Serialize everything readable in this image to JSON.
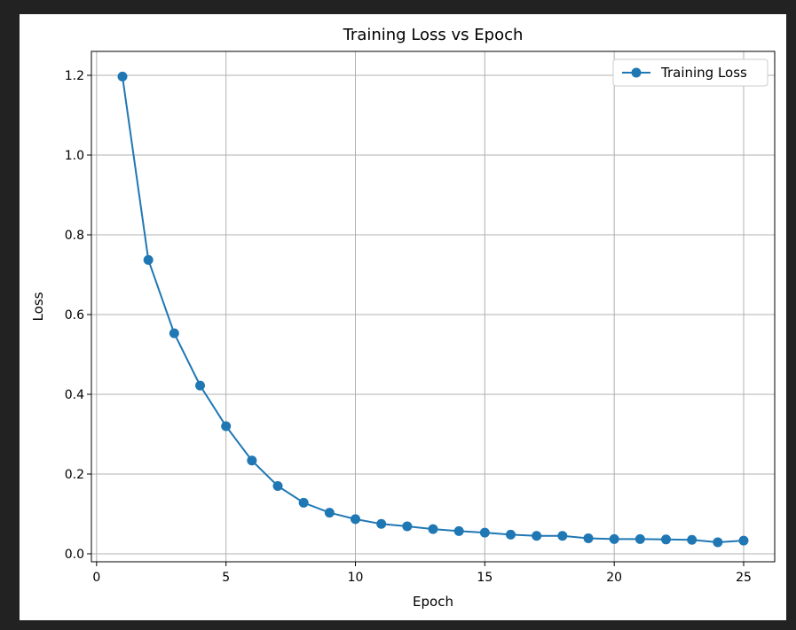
{
  "chart_data": {
    "type": "line",
    "title": "Training Loss vs Epoch",
    "xlabel": "Epoch",
    "ylabel": "Loss",
    "xlim": [
      -0.2,
      26.2
    ],
    "ylim": [
      -0.02,
      1.26
    ],
    "xticks": [
      0,
      5,
      10,
      15,
      20,
      25
    ],
    "yticks": [
      0.0,
      0.2,
      0.4,
      0.6,
      0.8,
      1.0,
      1.2
    ],
    "xtick_labels": [
      "0",
      "5",
      "10",
      "15",
      "20",
      "25"
    ],
    "ytick_labels": [
      "0.0",
      "0.2",
      "0.4",
      "0.6",
      "0.8",
      "1.0",
      "1.2"
    ],
    "grid": true,
    "legend_position": "top-right",
    "series": [
      {
        "name": "Training Loss",
        "color": "#1f77b4",
        "marker": "circle",
        "x": [
          1,
          2,
          3,
          4,
          5,
          6,
          7,
          8,
          9,
          10,
          11,
          12,
          13,
          14,
          15,
          16,
          17,
          18,
          19,
          20,
          21,
          22,
          23,
          24,
          25
        ],
        "y": [
          1.197,
          0.737,
          0.553,
          0.422,
          0.32,
          0.234,
          0.17,
          0.128,
          0.103,
          0.087,
          0.075,
          0.069,
          0.062,
          0.057,
          0.053,
          0.048,
          0.045,
          0.045,
          0.039,
          0.037,
          0.037,
          0.036,
          0.035,
          0.029,
          0.033
        ]
      }
    ]
  }
}
